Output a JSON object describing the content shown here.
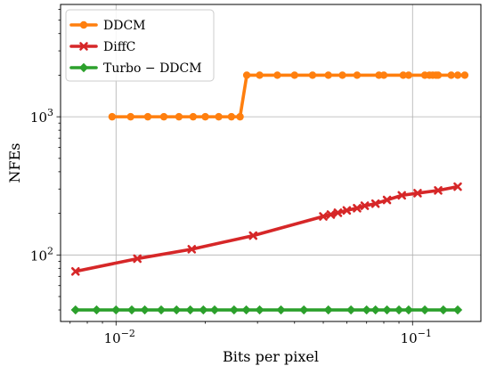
{
  "chart_data": {
    "type": "line",
    "xlabel": "Bits per pixel",
    "ylabel": "NFEs",
    "xscale": "log",
    "yscale": "log",
    "xlim": [
      0.0065,
      0.17
    ],
    "ylim": [
      33,
      6500
    ],
    "grid": true,
    "legend_position": "top-left",
    "x_ticks": [
      {
        "value": 0.01,
        "base": "10",
        "exp": "−2"
      },
      {
        "value": 0.1,
        "base": "10",
        "exp": "−1"
      }
    ],
    "y_ticks": [
      {
        "value": 100,
        "base": "10",
        "exp": "2"
      },
      {
        "value": 1000,
        "base": "10",
        "exp": "3"
      }
    ],
    "series": [
      {
        "name": "DDCM",
        "color": "#ff7f0e",
        "marker": "circle",
        "x": [
          0.0097,
          0.0112,
          0.0128,
          0.0145,
          0.0163,
          0.0182,
          0.02,
          0.0222,
          0.0245,
          0.0262,
          0.0276,
          0.0305,
          0.035,
          0.04,
          0.046,
          0.052,
          0.058,
          0.065,
          0.077,
          0.08,
          0.093,
          0.097,
          0.11,
          0.114,
          0.117,
          0.12,
          0.122,
          0.135,
          0.142,
          0.15
        ],
        "y": [
          1000,
          1000,
          1000,
          1000,
          1000,
          1000,
          1000,
          1000,
          1000,
          1000,
          2000,
          2000,
          2000,
          2000,
          2000,
          2000,
          2000,
          2000,
          2000,
          2000,
          2000,
          2000,
          2000,
          2000,
          2000,
          2000,
          2000,
          2000,
          2000,
          2000
        ]
      },
      {
        "name": "DiffC",
        "color": "#d62728",
        "marker": "x",
        "x": [
          0.0073,
          0.0118,
          0.018,
          0.029,
          0.05,
          0.053,
          0.056,
          0.06,
          0.065,
          0.069,
          0.075,
          0.082,
          0.092,
          0.104,
          0.122,
          0.142
        ],
        "y": [
          76,
          94,
          110,
          138,
          190,
          196,
          202,
          210,
          218,
          227,
          235,
          250,
          270,
          280,
          293,
          312
        ]
      },
      {
        "name": "Turbo − DDCM",
        "color": "#2ca02c",
        "marker": "diamond",
        "x": [
          0.0073,
          0.0086,
          0.01,
          0.0113,
          0.0125,
          0.0142,
          0.016,
          0.0178,
          0.0197,
          0.0215,
          0.025,
          0.0275,
          0.0305,
          0.036,
          0.043,
          0.052,
          0.062,
          0.07,
          0.075,
          0.082,
          0.09,
          0.097,
          0.11,
          0.127,
          0.142
        ],
        "y": [
          40,
          40,
          40,
          40,
          40,
          40,
          40,
          40,
          40,
          40,
          40,
          40,
          40,
          40,
          40,
          40,
          40,
          40,
          40,
          40,
          40,
          40,
          40,
          40,
          40
        ]
      }
    ]
  }
}
